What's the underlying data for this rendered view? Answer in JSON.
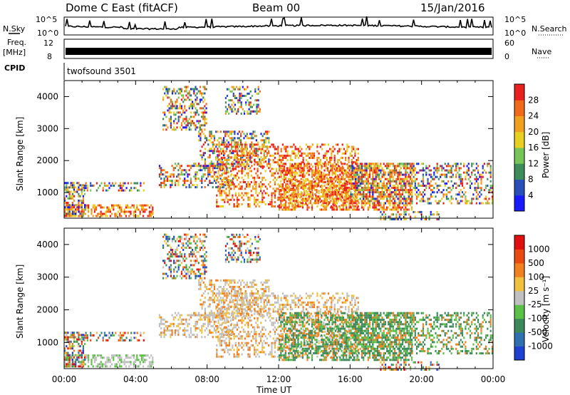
{
  "header": {
    "station": "Dome C East (fitACF)",
    "beam": "Beam 00",
    "date": "15/Jan/2016"
  },
  "top_panels": {
    "nsky_label": "N.Sky",
    "nsky_ticks": [
      "10^5",
      "10^0"
    ],
    "nsearch_label": "N.Search",
    "nsearch_ticks": [
      "10^5",
      "10^0"
    ],
    "freq_label": "Freq.",
    "freq_unit": "[MHz]",
    "freq_ticks": [
      "12",
      "8"
    ],
    "nave_label": "Nave",
    "nave_ticks": [
      "60",
      "0"
    ],
    "cpid_label": "CPID",
    "cpid_value": "twofsound 3501"
  },
  "chart_data": [
    {
      "type": "heatmap",
      "name": "power-panel",
      "ylabel": "Slant Range [km]",
      "y_ticks": [
        "1000",
        "2000",
        "3000",
        "4000"
      ],
      "ylim": [
        200,
        4500
      ],
      "colorbar_label": "Power [dB]",
      "colorbar_ticks": [
        "4",
        "8",
        "12",
        "16",
        "20",
        "24",
        "28"
      ],
      "colorbar_colors": [
        "#1a1aff",
        "#2850b8",
        "#3d8c5a",
        "#76c45a",
        "#e8d020",
        "#f0a020",
        "#f06a1a",
        "#e82020"
      ],
      "colorbar_range": [
        0,
        32
      ]
    },
    {
      "type": "heatmap",
      "name": "velocity-panel",
      "ylabel": "Slant Range [km]",
      "y_ticks": [
        "1000",
        "2000",
        "3000",
        "4000"
      ],
      "ylim": [
        200,
        4500
      ],
      "colorbar_label": "Velocity [m s⁻¹]",
      "colorbar_ticks": [
        "1000",
        "500",
        "100",
        "25",
        "-25",
        "-100",
        "-500",
        "-1000"
      ],
      "colorbar_colors": [
        "#2040d0",
        "#3070b0",
        "#3c8a5a",
        "#5cc048",
        "#c0c0c0",
        "#f0c040",
        "#f08020",
        "#e84a10",
        "#e01010"
      ]
    }
  ],
  "x_axis": {
    "label": "Time UT",
    "ticks": [
      "00:00",
      "04:00",
      "08:00",
      "12:00",
      "16:00",
      "20:00",
      "00:00"
    ]
  }
}
